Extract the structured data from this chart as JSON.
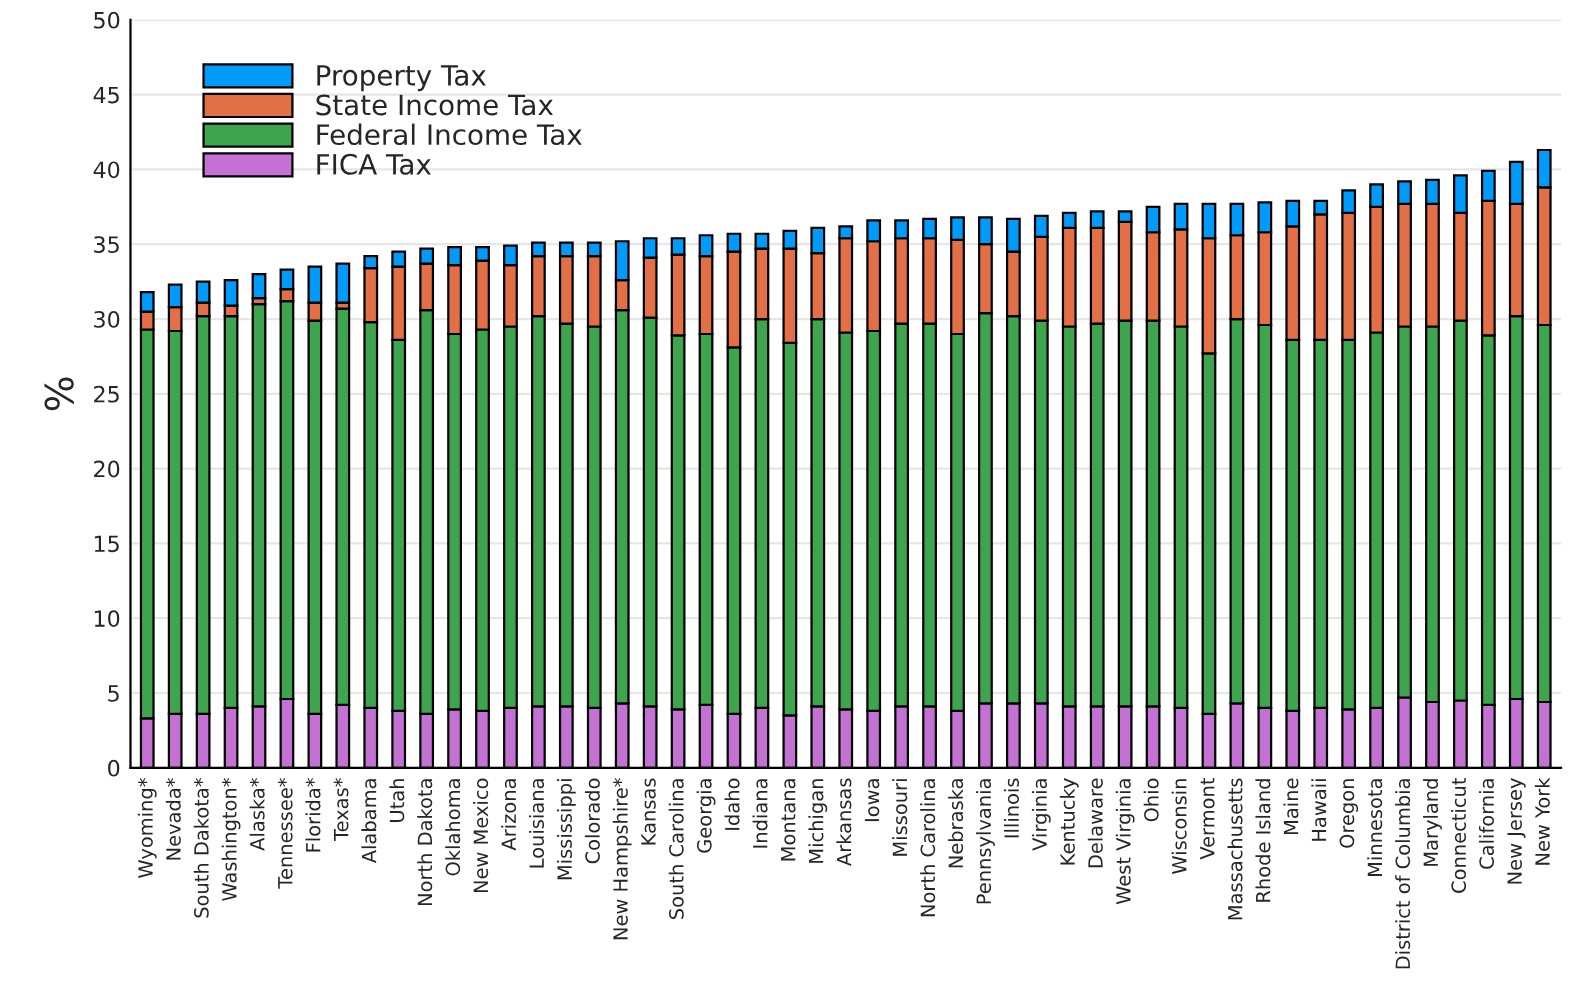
{
  "chart_data": {
    "type": "bar",
    "stacked": true,
    "ylabel": "%",
    "ylim": [
      0,
      50
    ],
    "yticks": [
      0,
      5,
      10,
      15,
      20,
      25,
      30,
      35,
      40,
      45,
      50
    ],
    "grid": "y",
    "legend": "top left",
    "categories": [
      "Wyoming*",
      "Nevada*",
      "South Dakota*",
      "Washington*",
      "Alaska*",
      "Tennessee*",
      "Florida*",
      "Texas*",
      "Alabama",
      "Utah",
      "North Dakota",
      "Oklahoma",
      "New Mexico",
      "Arizona",
      "Louisiana",
      "Mississippi",
      "Colorado",
      "New Hampshire*",
      "Kansas",
      "South Carolina",
      "Georgia",
      "Idaho",
      "Indiana",
      "Montana",
      "Michigan",
      "Arkansas",
      "Iowa",
      "Missouri",
      "North Carolina",
      "Nebraska",
      "Pennsylvania",
      "Illinois",
      "Virginia",
      "Kentucky",
      "Delaware",
      "West Virginia",
      "Ohio",
      "Wisconsin",
      "Vermont",
      "Massachusetts",
      "Rhode Island",
      "Maine",
      "Hawaii",
      "Oregon",
      "Minnesota",
      "District of Columbia",
      "Maryland",
      "Connecticut",
      "California",
      "New Jersey",
      "New York"
    ],
    "series": [
      {
        "name": "FICA Tax",
        "color": "#c371d2",
        "values": [
          3.3,
          3.6,
          3.6,
          4.0,
          4.1,
          4.6,
          3.6,
          4.2,
          4.0,
          3.8,
          3.6,
          3.9,
          3.8,
          4.0,
          4.1,
          4.1,
          4.0,
          4.3,
          4.1,
          3.9,
          4.2,
          3.6,
          4.0,
          3.5,
          4.1,
          3.9,
          3.8,
          4.1,
          4.1,
          3.8,
          4.3,
          4.3,
          4.3,
          4.1,
          4.1,
          4.1,
          4.1,
          4.0,
          3.6,
          4.3,
          4.0,
          3.8,
          4.0,
          3.9,
          4.0,
          4.7,
          4.4,
          4.5,
          4.2,
          4.6,
          4.4
        ]
      },
      {
        "name": "Federal Income Tax",
        "color": "#3ea44e",
        "values": [
          26.0,
          25.6,
          26.6,
          26.2,
          26.9,
          26.6,
          26.3,
          26.5,
          25.8,
          24.8,
          27.0,
          25.1,
          25.5,
          25.5,
          26.1,
          25.6,
          25.5,
          26.3,
          26.0,
          25.0,
          24.8,
          24.5,
          26.0,
          24.9,
          25.9,
          25.2,
          25.4,
          25.6,
          25.6,
          25.2,
          26.1,
          25.9,
          25.6,
          25.4,
          25.6,
          25.8,
          25.8,
          25.5,
          24.1,
          25.7,
          25.6,
          24.8,
          24.6,
          24.7,
          25.1,
          24.8,
          25.1,
          25.4,
          24.7,
          25.6,
          25.2
        ]
      },
      {
        "name": "State Income Tax",
        "color": "#e36f47",
        "values": [
          1.2,
          1.6,
          0.9,
          0.7,
          0.4,
          0.8,
          1.2,
          0.4,
          3.6,
          4.9,
          3.1,
          4.6,
          4.6,
          4.1,
          4.0,
          4.5,
          4.7,
          2.0,
          4.0,
          5.4,
          5.2,
          6.4,
          4.7,
          6.3,
          4.4,
          6.3,
          6.0,
          5.7,
          5.7,
          6.3,
          4.6,
          4.3,
          5.6,
          6.6,
          6.4,
          6.6,
          5.9,
          6.5,
          7.7,
          5.6,
          6.2,
          7.6,
          8.4,
          8.5,
          8.4,
          8.2,
          8.2,
          7.2,
          9.0,
          7.5,
          9.2
        ]
      },
      {
        "name": "Property Tax",
        "color": "#009afa",
        "values": [
          1.3,
          1.5,
          1.4,
          1.7,
          1.6,
          1.3,
          2.4,
          2.6,
          0.8,
          1.0,
          1.0,
          1.2,
          0.9,
          1.3,
          0.9,
          0.9,
          0.9,
          2.6,
          1.3,
          1.1,
          1.4,
          1.2,
          1.0,
          1.2,
          1.7,
          0.8,
          1.4,
          1.2,
          1.3,
          1.5,
          1.8,
          2.2,
          1.4,
          1.0,
          1.1,
          0.7,
          1.7,
          1.7,
          2.3,
          2.1,
          2.0,
          1.7,
          0.9,
          1.5,
          1.5,
          1.5,
          1.6,
          2.5,
          2.0,
          2.8,
          2.5
        ]
      }
    ]
  }
}
